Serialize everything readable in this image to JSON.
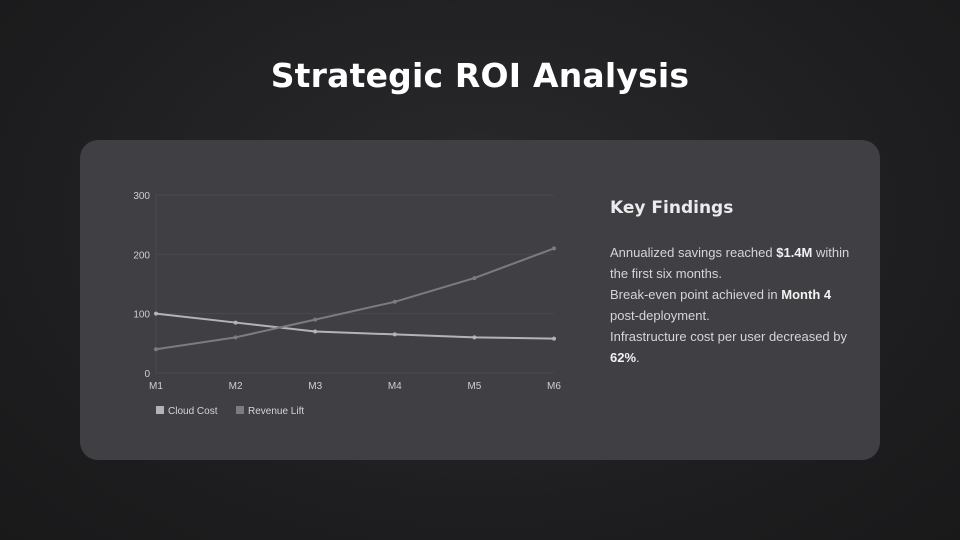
{
  "page": {
    "title": "Strategic ROI Analysis"
  },
  "findings": {
    "heading": "Key Findings",
    "items": [
      {
        "pre": "Annualized savings reached ",
        "bold": "$1.4M",
        "post": " within the first six months."
      },
      {
        "pre": "Break-even point achieved in ",
        "bold": "Month 4",
        "post": " post-deployment."
      },
      {
        "pre": "Infrastructure cost per user decreased by ",
        "bold": "62%",
        "post": "."
      }
    ]
  },
  "chart_data": {
    "type": "line",
    "categories": [
      "M1",
      "M2",
      "M3",
      "M4",
      "M5",
      "M6"
    ],
    "series": [
      {
        "name": "Cloud Cost",
        "values": [
          100,
          85,
          70,
          65,
          60,
          58
        ],
        "color": "#b4b4b8"
      },
      {
        "name": "Revenue Lift",
        "values": [
          40,
          60,
          90,
          120,
          160,
          210
        ],
        "color": "#7c7c80"
      }
    ],
    "y_ticks": [
      0,
      100,
      200,
      300
    ],
    "ylim": [
      0,
      300
    ],
    "grid": true,
    "legend_position": "bottom-left"
  }
}
